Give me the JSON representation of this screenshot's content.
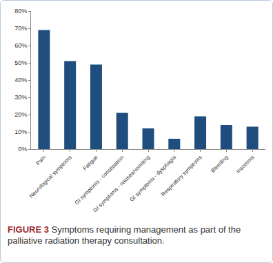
{
  "chart_data": {
    "type": "bar",
    "title": "FIGURE 3 Symptoms requiring management as part of the palliative radiation therapy consultation.",
    "categories": [
      "Pain",
      "Neurological symptoms",
      "Fatigue",
      "GI symptoms - constipation",
      "GI symptoms - nausea/vomiting",
      "GI symptoms - dysphagia",
      "Respiratory symptoms",
      "Bleeding",
      "Insomnia"
    ],
    "values": [
      69,
      51,
      49,
      21,
      12,
      6,
      19,
      14,
      13
    ],
    "color": "#1f4e7e",
    "ylim": [
      0,
      80
    ],
    "yticks": [
      {
        "value": 0,
        "label": "0%"
      },
      {
        "value": 10,
        "label": "10%"
      },
      {
        "value": 20,
        "label": "20%"
      },
      {
        "value": 30,
        "label": "30%"
      },
      {
        "value": 40,
        "label": "40%"
      },
      {
        "value": 50,
        "label": "50%"
      },
      {
        "value": 60,
        "label": "60%"
      },
      {
        "value": 70,
        "label": "70%"
      },
      {
        "value": 80,
        "label": "80%"
      }
    ],
    "grid": false
  }
}
